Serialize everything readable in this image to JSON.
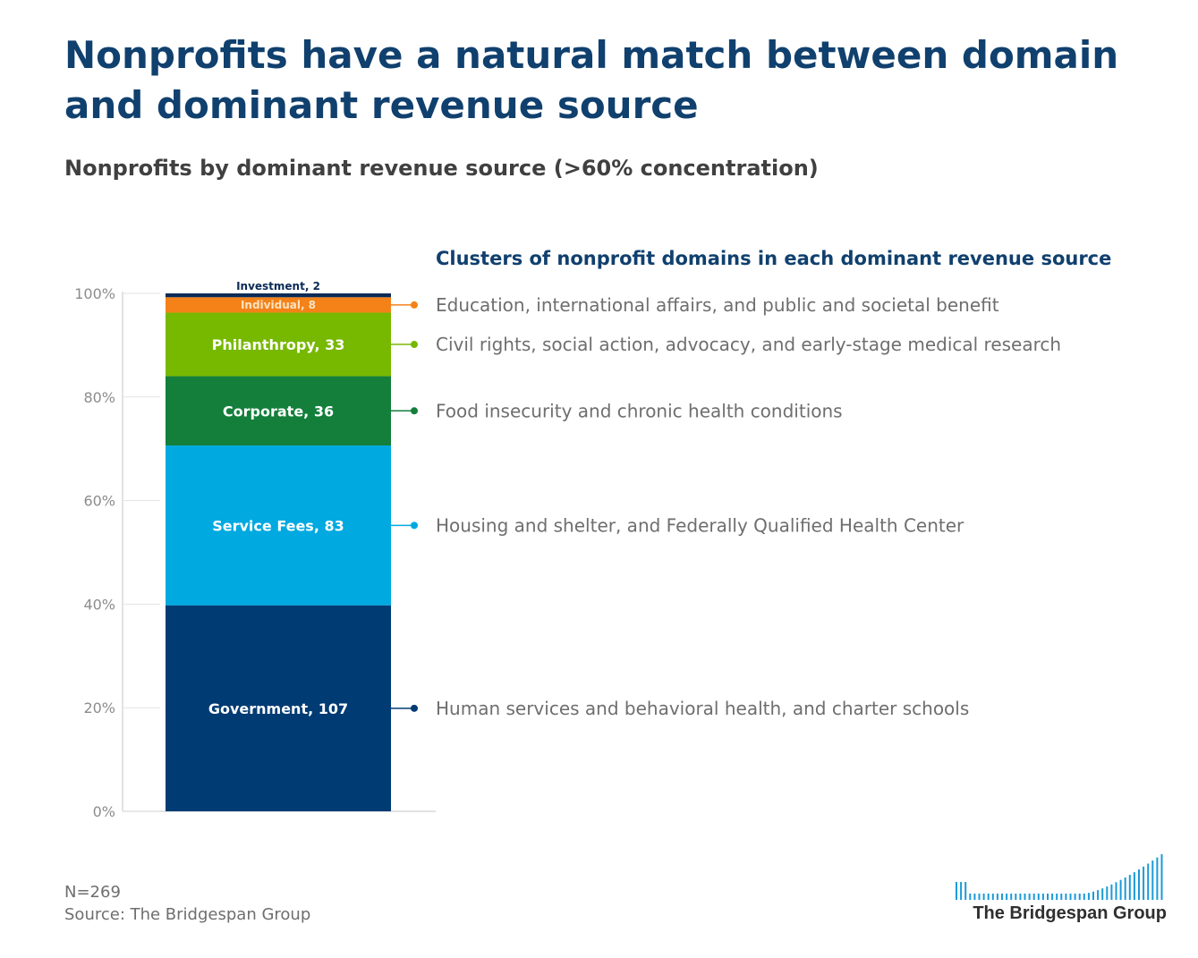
{
  "header": {
    "title": "Nonprofits have a natural match between domain and dominant revenue source",
    "subtitle": "Nonprofits by dominant revenue source (>60% concentration)",
    "clusters_header": "Clusters of nonprofit domains in each dominant revenue source"
  },
  "chart_data": {
    "type": "bar",
    "stacked": true,
    "ylim": [
      0,
      100
    ],
    "yticks": [
      "0%",
      "20%",
      "40%",
      "60%",
      "80%",
      "100%"
    ],
    "series": [
      {
        "name": "Government",
        "value": 107,
        "label": "Government, 107",
        "color": "#003b73",
        "domain": "Human services and behavioral health, and charter schools"
      },
      {
        "name": "Service Fees",
        "value": 83,
        "label": "Service Fees, 83",
        "color": "#00a9e0",
        "domain": "Housing and shelter, and Federally Qualified Health Center"
      },
      {
        "name": "Corporate",
        "value": 36,
        "label": "Corporate, 36",
        "color": "#137f3b",
        "domain": "Food insecurity and chronic health conditions"
      },
      {
        "name": "Philanthropy",
        "value": 33,
        "label": "Philanthropy, 33",
        "color": "#77b800",
        "domain": "Civil rights, social action, advocacy, and early-stage medical research"
      },
      {
        "name": "Individual",
        "value": 8,
        "label": "Individual, 8",
        "color": "#f48218",
        "domain": "Education, international affairs, and public and societal benefit"
      },
      {
        "name": "Investment",
        "value": 2,
        "label": "Investment, 2",
        "color": "#0b2a57",
        "domain": ""
      }
    ]
  },
  "footer": {
    "n": "N=269",
    "source": "Source: The Bridgespan Group"
  },
  "logo": {
    "text": "The Bridgespan Group",
    "color": "#1b9ad6"
  }
}
